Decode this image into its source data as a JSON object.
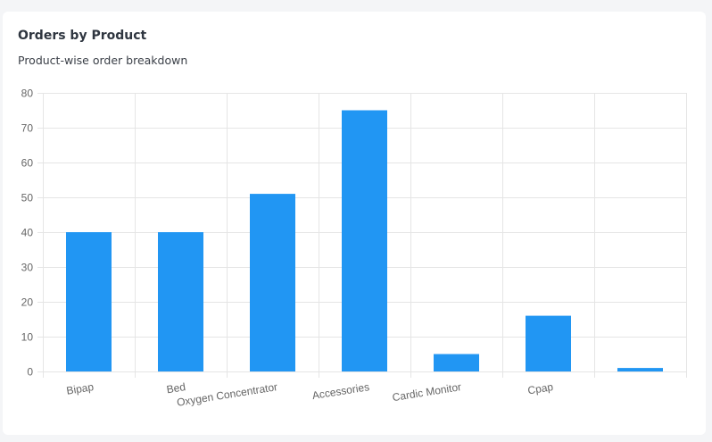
{
  "card": {
    "title": "Orders by Product",
    "subtitle": "Product-wise order breakdown"
  },
  "chart_data": {
    "type": "bar",
    "categories": [
      "Bipap",
      "Bed",
      "Oxygen Concentrator",
      "Accessories",
      "Cardic Monitor",
      "Cpap",
      ""
    ],
    "values": [
      40,
      40,
      51,
      75,
      5,
      16,
      1
    ],
    "ylim": [
      0,
      80
    ],
    "yticks": [
      0,
      10,
      20,
      30,
      40,
      50,
      60,
      70,
      80
    ],
    "grid": true,
    "bar_color": "#2196f3",
    "grid_color": "#e5e5e5",
    "xlabel": "",
    "ylabel": ""
  }
}
